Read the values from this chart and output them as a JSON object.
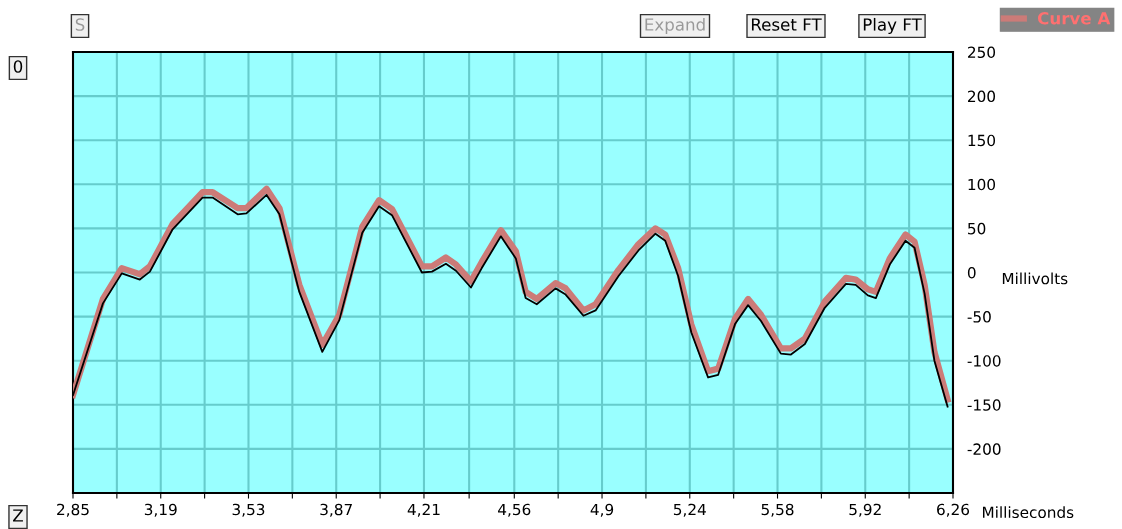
{
  "chart_data": {
    "type": "line",
    "xlabel": "Milliseconds",
    "ylabel": "Millivolts",
    "annotations": [
      "S",
      "Expand",
      "Reset FT",
      "Play FT",
      "0",
      "Z"
    ],
    "x": [
      2.85,
      2.966,
      3.039,
      3.109,
      3.148,
      3.236,
      3.352,
      3.391,
      3.488,
      3.522,
      3.6,
      3.65,
      3.727,
      3.816,
      3.882,
      3.971,
      4.036,
      4.086,
      4.202,
      4.241,
      4.295,
      4.334,
      4.392,
      4.434,
      4.508,
      4.566,
      4.604,
      4.647,
      4.72,
      4.759,
      4.828,
      4.875,
      4.964,
      5.041,
      5.107,
      5.145,
      5.195,
      5.246,
      5.311,
      5.35,
      5.416,
      5.466,
      5.516,
      5.593,
      5.632,
      5.686,
      5.763,
      5.845,
      5.883,
      5.93,
      5.961,
      6.015,
      6.076,
      6.111,
      6.15,
      6.188,
      6.239
    ],
    "series": [
      {
        "name": "Curve A",
        "color": "#cc7b78",
        "values": [
          -139,
          -30,
          5,
          -2,
          7,
          55,
          91,
          91,
          73,
          73,
          95,
          73,
          -14,
          -82,
          -48,
          52,
          82,
          72,
          7,
          7,
          17,
          9,
          -10,
          12,
          48,
          24,
          -22,
          -30,
          -12,
          -18,
          -43,
          -36,
          3,
          32,
          50,
          43,
          5,
          -59,
          -112,
          -109,
          -52,
          -30,
          -48,
          -86,
          -86,
          -75,
          -33,
          -6,
          -8,
          -19,
          -22,
          16,
          43,
          35,
          -14,
          -90,
          -144
        ]
      },
      {
        "color": "#000000",
        "values": [
          -139,
          -35,
          -1,
          -8,
          1,
          49,
          85,
          85,
          66,
          67,
          88,
          66,
          -22,
          -90,
          -54,
          45,
          75,
          65,
          0,
          1,
          10,
          2,
          -17,
          5,
          41,
          16,
          -29,
          -36,
          -18,
          -25,
          -49,
          -43,
          -4,
          25,
          44,
          36,
          -4,
          -68,
          -119,
          -116,
          -58,
          -37,
          -55,
          -92,
          -93,
          -81,
          -40,
          -13,
          -14,
          -26,
          -29,
          9,
          36,
          28,
          -24,
          -100,
          -152
        ]
      }
    ],
    "xlim": [
      2.85,
      6.26
    ],
    "xticks": [
      {
        "value": 2.85,
        "label": "2,85"
      },
      {
        "value": 3.02,
        "label": null
      },
      {
        "value": 3.19,
        "label": "3,19"
      },
      {
        "value": 3.36,
        "label": null
      },
      {
        "value": 3.53,
        "label": "3,53"
      },
      {
        "value": 3.7,
        "label": null
      },
      {
        "value": 3.87,
        "label": "3,87"
      },
      {
        "value": 4.04,
        "label": null
      },
      {
        "value": 4.21,
        "label": "4,21"
      },
      {
        "value": 4.385,
        "label": null
      },
      {
        "value": 4.56,
        "label": "4,56"
      },
      {
        "value": 4.73,
        "label": null
      },
      {
        "value": 4.9,
        "label": "4,9"
      },
      {
        "value": 5.07,
        "label": null
      },
      {
        "value": 5.24,
        "label": "5,24"
      },
      {
        "value": 5.41,
        "label": null
      },
      {
        "value": 5.58,
        "label": "5,58"
      },
      {
        "value": 5.75,
        "label": null
      },
      {
        "value": 5.92,
        "label": "5,92"
      },
      {
        "value": 6.09,
        "label": null
      },
      {
        "value": 6.26,
        "label": "6,26"
      }
    ],
    "ylim": [
      -250,
      250
    ],
    "yticks": [
      {
        "value": -250,
        "label": null
      },
      -200,
      -150,
      -100,
      -50,
      0,
      50,
      100,
      150,
      200,
      250
    ],
    "grid": true,
    "legend": "top right",
    "marker": "none",
    "line_style": "solid"
  }
}
